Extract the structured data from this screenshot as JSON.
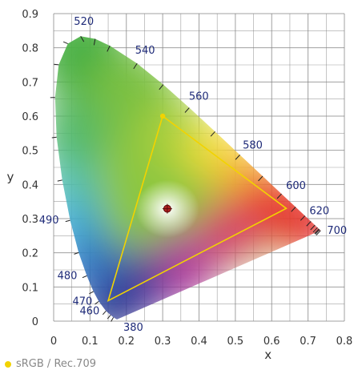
{
  "chart_data": {
    "type": "scatter",
    "title": "",
    "xlabel": "x",
    "ylabel": "y",
    "xlim": [
      0,
      0.8
    ],
    "ylim": [
      0,
      0.9
    ],
    "x_ticks": [
      "0",
      "0.1",
      "0.2",
      "0.3",
      "0.4",
      "0.5",
      "0.6",
      "0.7",
      "0.8"
    ],
    "y_ticks": [
      "0",
      "0.1",
      "0.2",
      "0.3",
      "0.4",
      "0.5",
      "0.6",
      "0.7",
      "0.8",
      "0.9"
    ],
    "grid": true,
    "spectral_locus": [
      {
        "nm": "380",
        "x": 0.1741,
        "y": 0.005,
        "label": true
      },
      {
        "nm": "440",
        "x": 0.1644,
        "y": 0.0109
      },
      {
        "nm": "450",
        "x": 0.1566,
        "y": 0.0177
      },
      {
        "nm": "460",
        "x": 0.144,
        "y": 0.0297,
        "label": true
      },
      {
        "nm": "470",
        "x": 0.1241,
        "y": 0.0578,
        "label": true
      },
      {
        "nm": "475",
        "x": 0.1096,
        "y": 0.0868
      },
      {
        "nm": "480",
        "x": 0.0913,
        "y": 0.1327,
        "label": true
      },
      {
        "nm": "485",
        "x": 0.0687,
        "y": 0.2007
      },
      {
        "nm": "490",
        "x": 0.0454,
        "y": 0.295,
        "label": true
      },
      {
        "nm": "495",
        "x": 0.0235,
        "y": 0.4127
      },
      {
        "nm": "500",
        "x": 0.0082,
        "y": 0.5384
      },
      {
        "nm": "505",
        "x": 0.0039,
        "y": 0.6548
      },
      {
        "nm": "510",
        "x": 0.0139,
        "y": 0.7502
      },
      {
        "nm": "515",
        "x": 0.0389,
        "y": 0.812
      },
      {
        "nm": "520",
        "x": 0.0743,
        "y": 0.8338,
        "label": true
      },
      {
        "nm": "525",
        "x": 0.1142,
        "y": 0.8262
      },
      {
        "nm": "530",
        "x": 0.1547,
        "y": 0.8059
      },
      {
        "nm": "540",
        "x": 0.2296,
        "y": 0.7543,
        "label": true
      },
      {
        "nm": "550",
        "x": 0.3016,
        "y": 0.6923
      },
      {
        "nm": "560",
        "x": 0.3731,
        "y": 0.6245,
        "label": true
      },
      {
        "nm": "570",
        "x": 0.4441,
        "y": 0.5547
      },
      {
        "nm": "580",
        "x": 0.5125,
        "y": 0.4866,
        "label": true
      },
      {
        "nm": "590",
        "x": 0.5752,
        "y": 0.4242
      },
      {
        "nm": "600",
        "x": 0.627,
        "y": 0.3725,
        "label": true
      },
      {
        "nm": "610",
        "x": 0.6658,
        "y": 0.334
      },
      {
        "nm": "620",
        "x": 0.6915,
        "y": 0.3083,
        "label": true
      },
      {
        "nm": "630",
        "x": 0.7079,
        "y": 0.292
      },
      {
        "nm": "640",
        "x": 0.719,
        "y": 0.2809
      },
      {
        "nm": "650",
        "x": 0.726,
        "y": 0.274
      },
      {
        "nm": "660",
        "x": 0.73,
        "y": 0.27
      },
      {
        "nm": "670",
        "x": 0.732,
        "y": 0.268
      },
      {
        "nm": "700",
        "x": 0.7347,
        "y": 0.2653,
        "label": true
      }
    ],
    "series": [
      {
        "name": "sRGB / Rec.709",
        "color": "#f2d300",
        "points": [
          {
            "x": 0.64,
            "y": 0.33
          },
          {
            "x": 0.3,
            "y": 0.6
          },
          {
            "x": 0.15,
            "y": 0.06
          }
        ]
      }
    ],
    "white_point": {
      "x": 0.3127,
      "y": 0.329
    },
    "colors": {
      "axis_text": "#333333",
      "wavelength_text": "#1e2a78",
      "grid": "#888888",
      "white_point": "#b22222"
    }
  }
}
